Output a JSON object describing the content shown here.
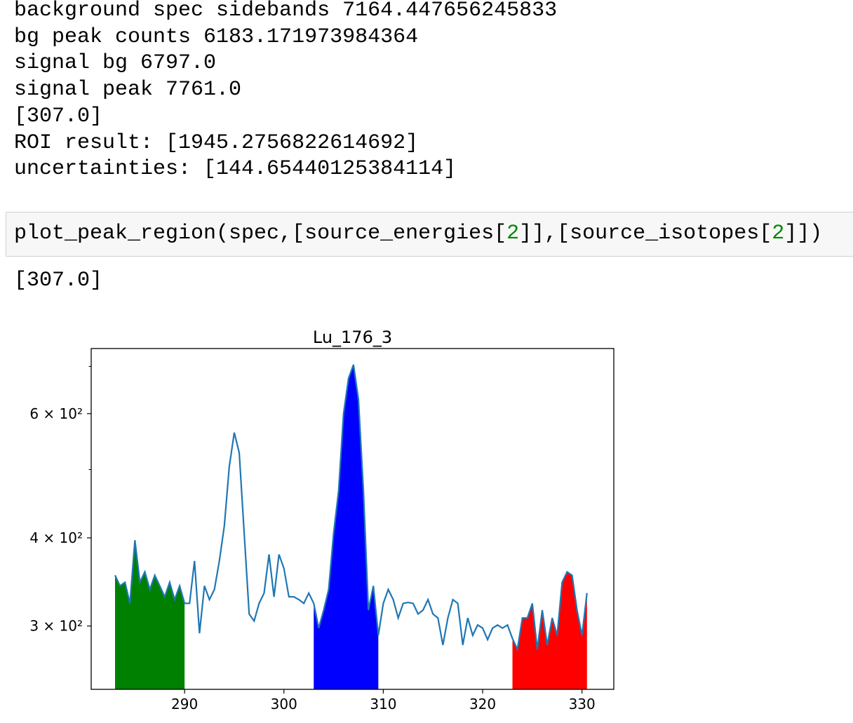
{
  "outputs": [
    "background spec sidebands 7164.447656245833",
    "bg peak counts 6183.171973984364",
    "signal bg 6797.0",
    "signal peak 7761.0",
    "[307.0]",
    "ROI result: [1945.2756822614692]",
    "uncertainties: [144.65440125384114]"
  ],
  "code": [
    "plot_peak_region(spec,[source_energies[",
    "2",
    "]],[source_isotopes[",
    "2",
    "]])"
  ],
  "result": "[307.0]",
  "chart_data": {
    "type": "line",
    "title": "Lu_176_3",
    "log_y": true,
    "series": [
      {
        "color": "#1f77b4",
        "x": [
          283,
          283.5,
          284,
          284.5,
          285,
          285.5,
          286,
          286.5,
          287,
          287.5,
          288,
          288.5,
          289,
          289.5,
          290,
          290.5,
          291,
          291.5,
          292,
          292.5,
          293,
          293.5,
          294,
          294.5,
          295,
          295.5,
          296,
          296.5,
          297,
          297.5,
          298,
          298.5,
          299,
          299.5,
          300,
          300.5,
          301,
          301.5,
          302,
          302.5,
          303,
          303.5,
          304,
          304.5,
          305,
          305.5,
          306,
          306.5,
          307,
          307.5,
          308,
          308.5,
          309,
          309.5,
          310,
          310.5,
          311,
          311.5,
          312,
          312.5,
          313,
          313.5,
          314,
          314.5,
          315,
          315.5,
          316,
          316.5,
          317,
          317.5,
          318,
          318.5,
          319,
          319.5,
          320,
          320.5,
          321,
          321.5,
          322,
          322.5,
          323,
          323.5,
          324,
          324.5,
          325,
          325.5,
          326,
          326.5,
          327,
          327.5,
          328,
          328.5,
          329,
          329.5,
          330,
          330.5
        ],
        "values": [
          354,
          342,
          346,
          323,
          397,
          346,
          358,
          338,
          354,
          342,
          330,
          346,
          327,
          342,
          323,
          323,
          371,
          293,
          342,
          327,
          338,
          371,
          416,
          505,
          564,
          528,
          406,
          312,
          305,
          323,
          334,
          379,
          330,
          379,
          362,
          330,
          330,
          327,
          323,
          334,
          323,
          298,
          316,
          338,
          406,
          466,
          600,
          673,
          704,
          628,
          466,
          316,
          342,
          291,
          323,
          338,
          327,
          308,
          323,
          324,
          323,
          312,
          316,
          327,
          312,
          308,
          282,
          308,
          327,
          323,
          282,
          308,
          291,
          301,
          298,
          287,
          298,
          301,
          298,
          301,
          288,
          278,
          308,
          308,
          323,
          278,
          316,
          282,
          308,
          291,
          346,
          358,
          354,
          316,
          291,
          334
        ]
      }
    ],
    "fill_regions": [
      {
        "color": "green",
        "range": [
          283,
          290
        ]
      },
      {
        "color": "blue",
        "range": [
          303,
          309.5
        ]
      },
      {
        "color": "red",
        "range": [
          323,
          330.5
        ]
      }
    ],
    "xlim": [
      280.6,
      333.2
    ],
    "ylim": [
      244,
      742
    ],
    "xticks": [
      290,
      300,
      310,
      320,
      330
    ],
    "yticks": [
      {
        "value": 300,
        "label": "3 × 10²"
      },
      {
        "value": 400,
        "label": "4 × 10²"
      },
      {
        "value": 600,
        "label": "6 × 10²"
      }
    ],
    "yminorticks": [
      500,
      700
    ]
  }
}
